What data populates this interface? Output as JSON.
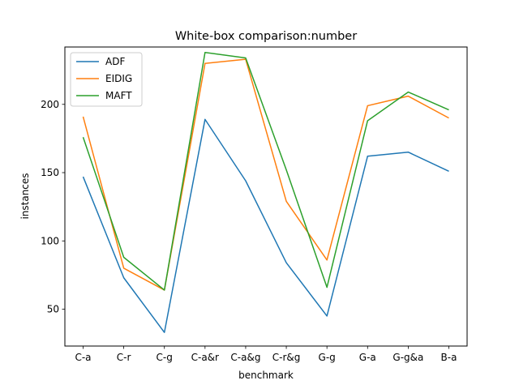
{
  "chart_data": {
    "type": "line",
    "title": "White-box comparison:number",
    "xlabel": "benchmark",
    "ylabel": "instances",
    "categories": [
      "C-a",
      "C-r",
      "C-g",
      "C-a&r",
      "C-a&g",
      "C-r&g",
      "G-g",
      "G-a",
      "G-g&a",
      "B-a"
    ],
    "ylim": [
      23,
      242
    ],
    "yticks": [
      50,
      100,
      150,
      200
    ],
    "grid": false,
    "legend_position": "top-left",
    "series": [
      {
        "name": "ADF",
        "color": "#1f77b4",
        "values": [
          147,
          73,
          33,
          189,
          144,
          84,
          45,
          162,
          165,
          151
        ]
      },
      {
        "name": "EIDIG",
        "color": "#ff7f0e",
        "values": [
          191,
          80,
          64,
          230,
          233,
          129,
          86,
          199,
          206,
          190
        ]
      },
      {
        "name": "MAFT",
        "color": "#2ca02c",
        "values": [
          176,
          88,
          64,
          238,
          234,
          152,
          66,
          188,
          209,
          196
        ]
      }
    ]
  }
}
